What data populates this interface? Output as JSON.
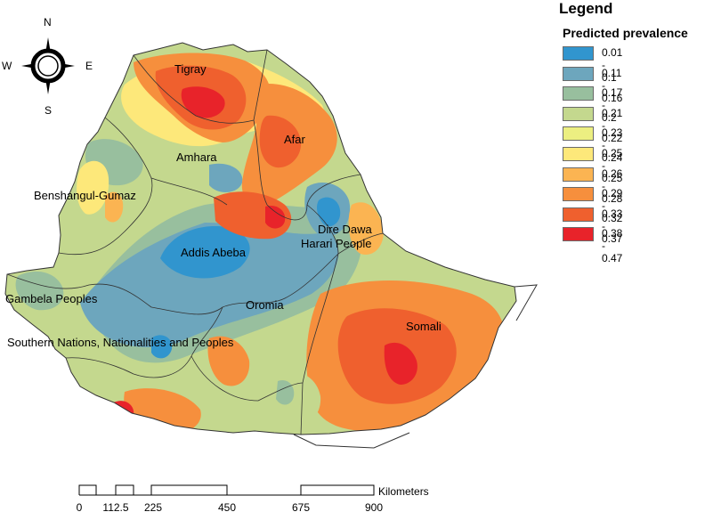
{
  "legend": {
    "title": "Legend",
    "subtitle": "Predicted prevalence",
    "items": [
      {
        "label": "0.01 - 0.1",
        "color": "#3195ce"
      },
      {
        "label": "0.11 - 0.16",
        "color": "#6da6bd"
      },
      {
        "label": "0.17 - 0.2",
        "color": "#98bf9e"
      },
      {
        "label": "0.21 - 0.22",
        "color": "#c4d88e"
      },
      {
        "label": "0.23 - 0.24",
        "color": "#ecef81"
      },
      {
        "label": "0.25 - 0.25",
        "color": "#fde87a"
      },
      {
        "label": "0.26 - 0.28",
        "color": "#fbb452"
      },
      {
        "label": "0.29 - 0.32",
        "color": "#f68f3d"
      },
      {
        "label": "0.33 - 0.37",
        "color": "#ef602e"
      },
      {
        "label": "0.38 - 0.47",
        "color": "#e8232a"
      }
    ]
  },
  "compass": {
    "n": "N",
    "s": "S",
    "e": "E",
    "w": "W"
  },
  "regions": {
    "tigray": "Tigray",
    "afar": "Afar",
    "amhara": "Amhara",
    "benshangul": "Benshangul-Gumaz",
    "addis": "Addis Abeba",
    "dire_dawa": "Dire Dawa",
    "harari": "Harari People",
    "gambela": "Gambela Peoples",
    "oromia": "Oromia",
    "snnp": "Southern Nations, Nationalities and Peoples",
    "somali": "Somali"
  },
  "scale_bar": {
    "unit": "Kilometers",
    "ticks": [
      "0",
      "112.5",
      "225",
      "450",
      "675",
      "900"
    ]
  }
}
